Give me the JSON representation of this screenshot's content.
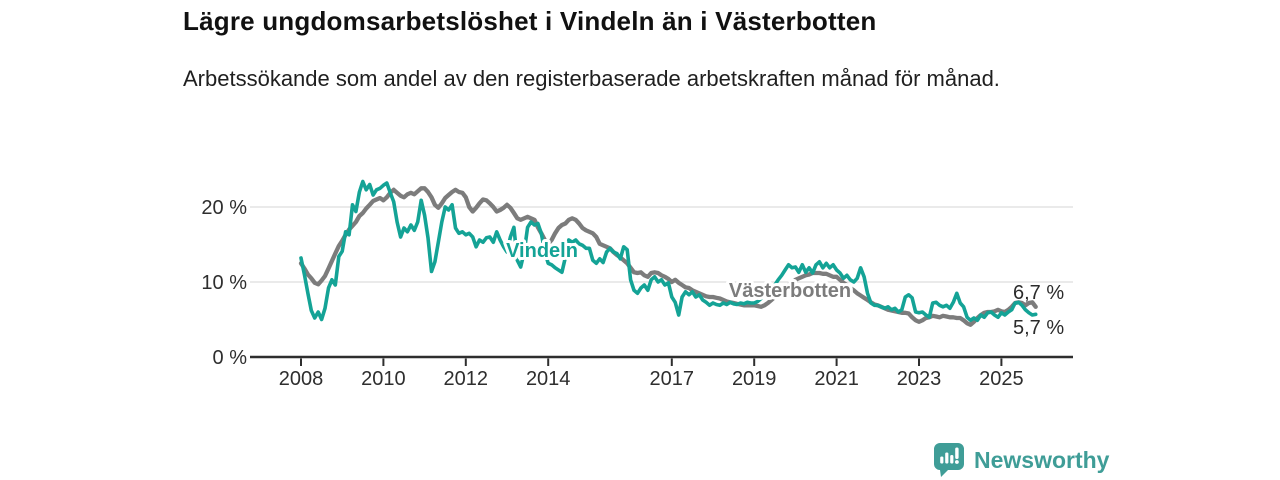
{
  "header": {
    "title": "Lägre ungdomsarbetslöshet i Vindeln än i Västerbotten",
    "subtitle": "Arbetssökande som andel av den registerbaserade arbetskraften månad för månad."
  },
  "footer": {
    "brand": "Newsworthy",
    "logo_icon": "bar-chart-badge-icon"
  },
  "colors": {
    "vindeln_teal": "#14A396",
    "vasterbotten_gray": "#7C7C7C",
    "axis": "#2E2E2E",
    "grid": "#E4E4E4",
    "title_text": "#111111",
    "brand_teal": "#3F9D97"
  },
  "chart_data": {
    "type": "line",
    "title": "Lägre ungdomsarbetslöshet i Vindeln än i Västerbotten",
    "subtitle": "Arbetssökande som andel av den registerbaserade arbetskraften månad för månad.",
    "unit": "%",
    "x_frequency": "monthly",
    "x_start": "2008-01",
    "x_end": "2025-11",
    "x_tick_years": [
      2008,
      2010,
      2012,
      2014,
      2017,
      2019,
      2021,
      2023,
      2025
    ],
    "y_ticks": [
      {
        "value": 0,
        "label": "0 %"
      },
      {
        "value": 10,
        "label": "10 %"
      },
      {
        "value": 20,
        "label": "20 %"
      }
    ],
    "ylim": [
      0,
      25
    ],
    "grid": "horizontal",
    "legend_position": "inline-labels",
    "series": [
      {
        "name": "Västerbotten",
        "color": "#7C7C7C",
        "end_label": "6,7 %",
        "values": [
          12.5,
          11.8,
          11.0,
          10.5,
          9.9,
          9.7,
          10.2,
          10.8,
          11.8,
          12.8,
          13.8,
          14.8,
          15.5,
          16.3,
          17.0,
          17.5,
          18.0,
          18.8,
          19.2,
          19.8,
          20.3,
          20.8,
          21.0,
          21.2,
          20.9,
          21.3,
          21.9,
          22.3,
          21.9,
          21.5,
          21.3,
          21.7,
          21.9,
          21.7,
          22.1,
          22.5,
          22.5,
          22.0,
          21.3,
          20.3,
          19.9,
          20.5,
          21.2,
          21.6,
          22.0,
          22.3,
          22.0,
          21.9,
          21.3,
          20.0,
          19.4,
          19.9,
          20.5,
          21.0,
          20.9,
          20.5,
          20.0,
          19.4,
          19.6,
          19.9,
          20.3,
          19.9,
          19.2,
          18.5,
          18.3,
          18.5,
          18.7,
          18.5,
          18.3,
          17.3,
          16.5,
          15.6,
          15.1,
          15.6,
          16.5,
          17.2,
          17.6,
          17.8,
          18.3,
          18.5,
          18.3,
          17.8,
          17.2,
          16.9,
          16.7,
          16.5,
          16.0,
          15.1,
          14.9,
          14.7,
          14.5,
          14.0,
          13.6,
          13.3,
          12.9,
          12.5,
          11.9,
          11.3,
          11.2,
          11.3,
          10.9,
          10.7,
          11.2,
          11.3,
          11.2,
          10.9,
          10.7,
          10.4,
          10.0,
          10.3,
          9.9,
          9.6,
          9.3,
          9.2,
          8.9,
          8.7,
          8.5,
          8.3,
          8.1,
          8.0,
          8.0,
          7.9,
          7.8,
          7.6,
          7.4,
          7.3,
          7.2,
          7.1,
          7.0,
          6.9,
          6.9,
          6.9,
          6.9,
          6.8,
          6.7,
          6.9,
          7.2,
          7.6,
          8.0,
          8.5,
          8.9,
          9.2,
          9.6,
          9.9,
          10.3,
          10.5,
          10.7,
          10.9,
          11.0,
          11.2,
          11.2,
          11.2,
          11.1,
          11.1,
          10.9,
          10.7,
          10.7,
          10.3,
          9.9,
          9.6,
          9.2,
          8.9,
          8.5,
          8.2,
          7.9,
          7.6,
          7.3,
          7.0,
          6.9,
          6.7,
          6.5,
          6.3,
          6.2,
          6.1,
          6.0,
          5.9,
          5.9,
          5.8,
          5.3,
          4.9,
          4.7,
          4.9,
          5.2,
          5.3,
          5.5,
          5.4,
          5.3,
          5.5,
          5.4,
          5.3,
          5.3,
          5.2,
          5.2,
          4.9,
          4.5,
          4.3,
          4.7,
          5.2,
          5.6,
          5.9,
          6.0,
          6.0,
          6.1,
          6.3,
          6.1,
          6.0,
          6.3,
          6.7,
          7.2,
          7.3,
          7.2,
          6.9,
          7.2,
          7.3,
          6.7
        ]
      },
      {
        "name": "Vindeln",
        "color": "#14A396",
        "end_label": "5,7 %",
        "values": [
          13.2,
          11.0,
          8.5,
          6.2,
          5.2,
          6.0,
          5.0,
          6.5,
          9.2,
          10.3,
          9.6,
          13.4,
          14.1,
          16.7,
          16.3,
          20.3,
          19.4,
          22.0,
          23.4,
          22.3,
          23.0,
          21.6,
          22.3,
          22.5,
          22.9,
          23.2,
          21.9,
          20.7,
          18.0,
          16.0,
          17.2,
          16.7,
          17.6,
          16.9,
          18.0,
          20.9,
          18.9,
          15.9,
          11.4,
          12.7,
          15.3,
          18.0,
          20.0,
          19.6,
          20.3,
          17.2,
          16.5,
          16.7,
          16.3,
          16.5,
          16.0,
          14.7,
          15.6,
          15.3,
          15.9,
          16.0,
          15.3,
          16.7,
          15.6,
          14.7,
          14.0,
          16.0,
          17.3,
          12.9,
          12.0,
          14.0,
          17.3,
          18.0,
          17.6,
          17.8,
          16.5,
          14.0,
          12.5,
          12.3,
          11.9,
          11.6,
          11.3,
          13.3,
          15.6,
          15.3,
          15.6,
          15.1,
          14.9,
          14.5,
          14.5,
          12.9,
          12.5,
          13.1,
          12.6,
          14.0,
          14.5,
          14.0,
          13.8,
          13.1,
          14.7,
          14.3,
          10.3,
          8.9,
          8.5,
          9.2,
          9.6,
          8.9,
          10.3,
          10.7,
          10.0,
          10.3,
          9.6,
          9.9,
          8.0,
          7.3,
          5.6,
          8.0,
          8.7,
          8.3,
          8.7,
          8.0,
          8.3,
          7.6,
          7.3,
          6.9,
          7.2,
          7.0,
          6.9,
          7.2,
          7.0,
          7.3,
          7.1,
          7.0,
          7.2,
          7.1,
          7.3,
          7.2,
          7.2,
          7.4,
          7.8,
          8.3,
          8.9,
          9.3,
          9.6,
          10.3,
          10.9,
          11.6,
          12.3,
          11.9,
          12.0,
          11.3,
          12.3,
          11.3,
          11.9,
          11.2,
          12.3,
          12.7,
          11.9,
          12.5,
          11.9,
          12.3,
          11.6,
          11.2,
          10.5,
          10.9,
          10.3,
          10.0,
          10.5,
          11.9,
          10.7,
          8.5,
          7.2,
          6.9,
          6.9,
          6.7,
          6.5,
          6.7,
          6.3,
          6.5,
          6.0,
          6.3,
          8.0,
          8.3,
          7.9,
          6.0,
          5.9,
          6.0,
          5.6,
          5.3,
          7.2,
          7.3,
          6.9,
          6.7,
          6.9,
          6.5,
          7.3,
          8.5,
          7.2,
          6.7,
          5.3,
          4.9,
          5.2,
          4.9,
          5.6,
          5.3,
          5.9,
          6.0,
          5.6,
          5.3,
          5.9,
          5.6,
          6.0,
          6.3,
          7.2,
          7.3,
          6.9,
          6.3,
          5.9,
          5.6,
          5.7
        ]
      }
    ]
  }
}
